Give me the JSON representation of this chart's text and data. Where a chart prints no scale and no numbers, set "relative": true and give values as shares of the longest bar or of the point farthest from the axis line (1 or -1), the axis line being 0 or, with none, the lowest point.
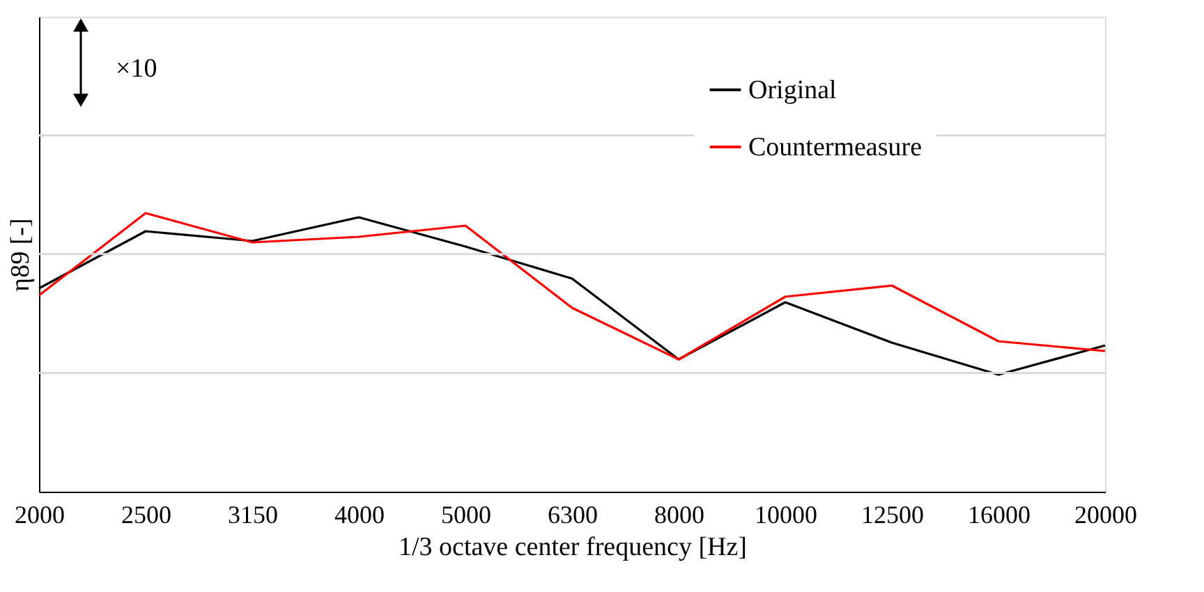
{
  "chart_data": {
    "type": "line",
    "relative": true,
    "ylabel": "η89 [-]",
    "xlabel": "1/3 octave center frequency [Hz]",
    "categories": [
      "2000",
      "2500",
      "3150",
      "4000",
      "5000",
      "6300",
      "8000",
      "10000",
      "12500",
      "16000",
      "20000"
    ],
    "series": [
      {
        "name": "Original",
        "color": "#000000",
        "values": [
          0.73,
          0.935,
          0.9,
          0.985,
          0.88,
          0.765,
          0.475,
          0.68,
          0.535,
          0.42,
          0.525
        ]
      },
      {
        "name": "Countermeasure",
        "color": "#ff0000",
        "values": [
          0.705,
          1.0,
          0.895,
          0.915,
          0.955,
          0.66,
          0.475,
          0.7,
          0.74,
          0.54,
          0.505
        ]
      }
    ],
    "annotations": [
      "×10"
    ],
    "ref_lines": [
      {
        "axis": "y",
        "value": 0.426,
        "color": "#d9d9d9"
      },
      {
        "axis": "y",
        "value": 0.853,
        "color": "#d9d9d9"
      },
      {
        "axis": "y",
        "value": 1.279,
        "color": "#d9d9d9"
      }
    ],
    "legend": "top right",
    "marker": "none",
    "line_style": "solid"
  }
}
